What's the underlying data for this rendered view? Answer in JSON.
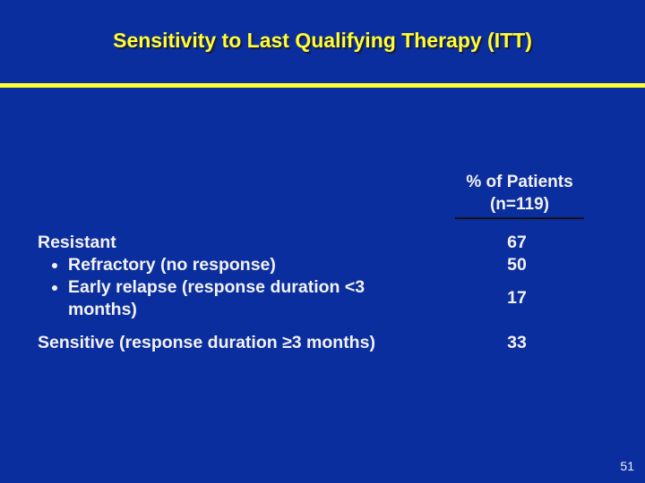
{
  "header": {
    "title": "Sensitivity to Last Qualifying Therapy (ITT)"
  },
  "table": {
    "column_header": [
      "% of Patients",
      "(n=119)"
    ],
    "rows": [
      [
        "Resistant",
        "67"
      ],
      [
        "Refractory (no response)",
        "50"
      ],
      [
        "Early relapse (response duration <3 months)",
        "17"
      ],
      [
        "Sensitive (response duration ≥3 months)",
        "33"
      ]
    ]
  },
  "footer": {
    "page_number": "51"
  }
}
